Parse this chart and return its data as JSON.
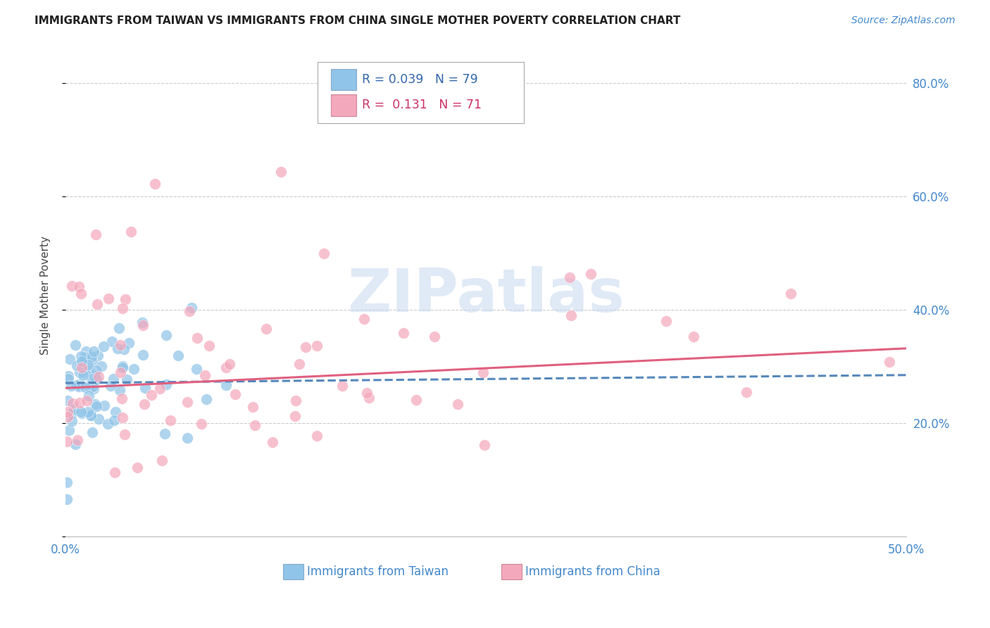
{
  "title": "IMMIGRANTS FROM TAIWAN VS IMMIGRANTS FROM CHINA SINGLE MOTHER POVERTY CORRELATION CHART",
  "source": "Source: ZipAtlas.com",
  "ylabel": "Single Mother Poverty",
  "xlim": [
    0.0,
    0.5
  ],
  "ylim": [
    0.0,
    0.85
  ],
  "yticks": [
    0.0,
    0.2,
    0.4,
    0.6,
    0.8
  ],
  "ytick_labels": [
    "",
    "20.0%",
    "40.0%",
    "60.0%",
    "80.0%"
  ],
  "xticks": [
    0.0,
    0.1,
    0.2,
    0.3,
    0.4,
    0.5
  ],
  "xtick_labels": [
    "0.0%",
    "",
    "",
    "",
    "",
    "50.0%"
  ],
  "taiwan_color": "#90c4e8",
  "china_color": "#f4a8bc",
  "taiwan_R": 0.039,
  "taiwan_N": 79,
  "china_R": 0.131,
  "china_N": 71,
  "taiwan_line_color": "#5588bb",
  "china_line_color": "#e06080",
  "watermark_text": "ZIPatlas",
  "watermark_color": "#c8d8ef",
  "grid_color": "#cccccc",
  "title_color": "#222222",
  "source_color": "#4488cc",
  "axis_tick_color": "#4488cc",
  "ylabel_color": "#444444",
  "legend_taiwan_text": "R = 0.039   N = 79",
  "legend_china_text": "R =  0.131   N = 71",
  "legend_taiwan_color": "#3366aa",
  "legend_china_color": "#cc3366",
  "bottom_legend_taiwan": "Immigrants from Taiwan",
  "bottom_legend_china": "Immigrants from China"
}
